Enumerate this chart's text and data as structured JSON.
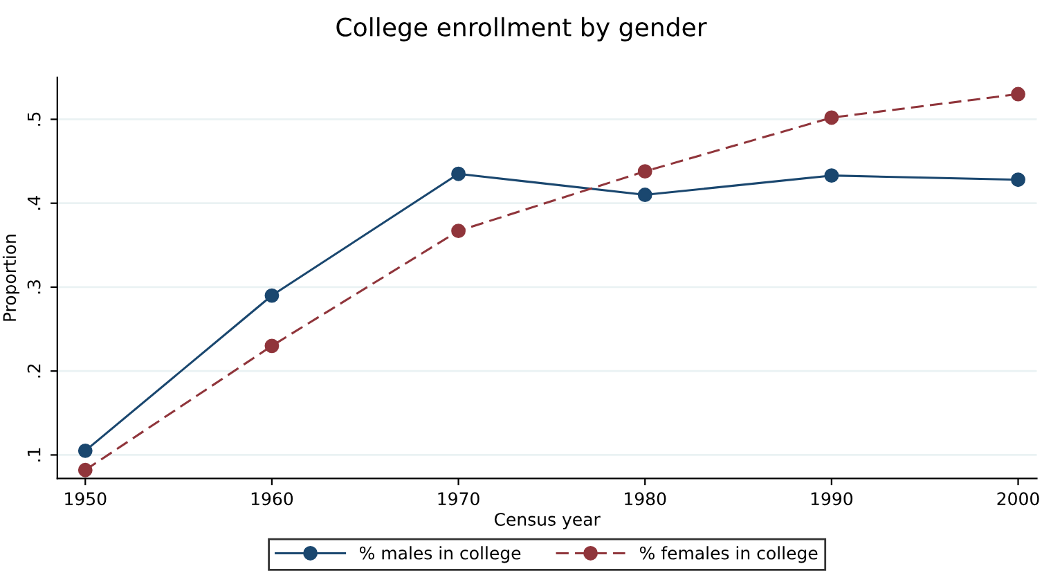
{
  "chart_data": {
    "type": "line",
    "title": "College enrollment by gender",
    "xlabel": "Census year",
    "ylabel": "Proportion",
    "x": [
      1950,
      1960,
      1970,
      1980,
      1990,
      2000
    ],
    "series": [
      {
        "name": "% males in college",
        "color": "#1a476f",
        "line_style": "solid",
        "values": [
          0.105,
          0.29,
          0.435,
          0.41,
          0.433,
          0.428
        ]
      },
      {
        "name": "% females in college",
        "color": "#90353b",
        "line_style": "dashed",
        "values": [
          0.082,
          0.23,
          0.367,
          0.438,
          0.502,
          0.53
        ]
      }
    ],
    "xlim": [
      1948.5,
      2001
    ],
    "xticks": [
      1950,
      1960,
      1970,
      1980,
      1990,
      2000
    ],
    "ylim": [
      0.072,
      0.55
    ],
    "yticks": [
      {
        "value": 0.1,
        "label": ".1"
      },
      {
        "value": 0.2,
        "label": ".2"
      },
      {
        "value": 0.3,
        "label": ".3"
      },
      {
        "value": 0.4,
        "label": ".4"
      },
      {
        "value": 0.5,
        "label": ".5"
      }
    ],
    "grid": "y",
    "legend": "bottom",
    "marker": "circle"
  }
}
